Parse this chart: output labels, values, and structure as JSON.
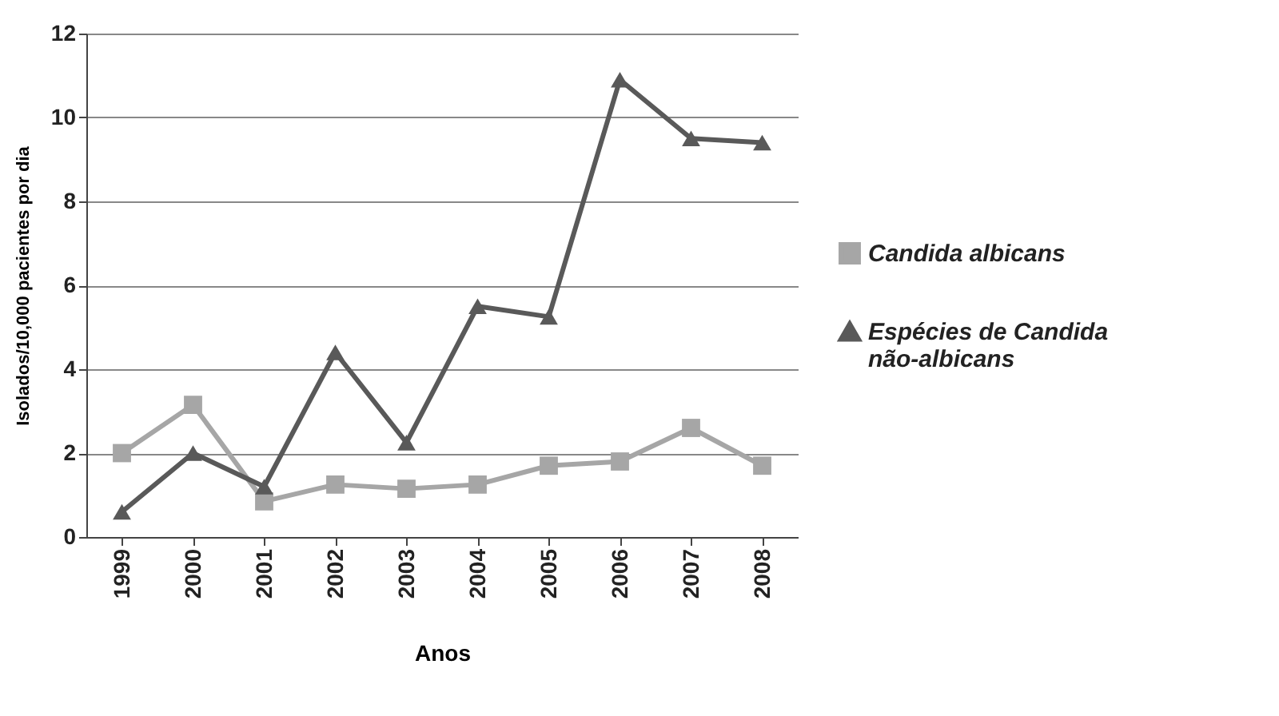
{
  "chart_data": {
    "type": "line",
    "xlabel": "Anos",
    "ylabel": "Isolados/10,000 pacientes por dia",
    "categories": [
      "1999",
      "2000",
      "2001",
      "2002",
      "2003",
      "2004",
      "2005",
      "2006",
      "2007",
      "2008"
    ],
    "series": [
      {
        "name": "Candida albicans",
        "color": "#a6a6a6",
        "marker": "square",
        "values": [
          2.0,
          3.15,
          0.85,
          1.25,
          1.15,
          1.25,
          1.7,
          1.8,
          2.6,
          1.7
        ]
      },
      {
        "name": "Espécies de Candida não-albicans",
        "color": "#595959",
        "marker": "triangle",
        "values": [
          0.6,
          2.0,
          1.2,
          4.4,
          2.25,
          5.5,
          5.25,
          10.9,
          9.5,
          9.4
        ]
      }
    ],
    "ylim": [
      0,
      12
    ],
    "yticks": [
      0,
      2,
      4,
      6,
      8,
      10,
      12
    ],
    "grid": "y",
    "legend": "right",
    "line_style": "solid"
  }
}
